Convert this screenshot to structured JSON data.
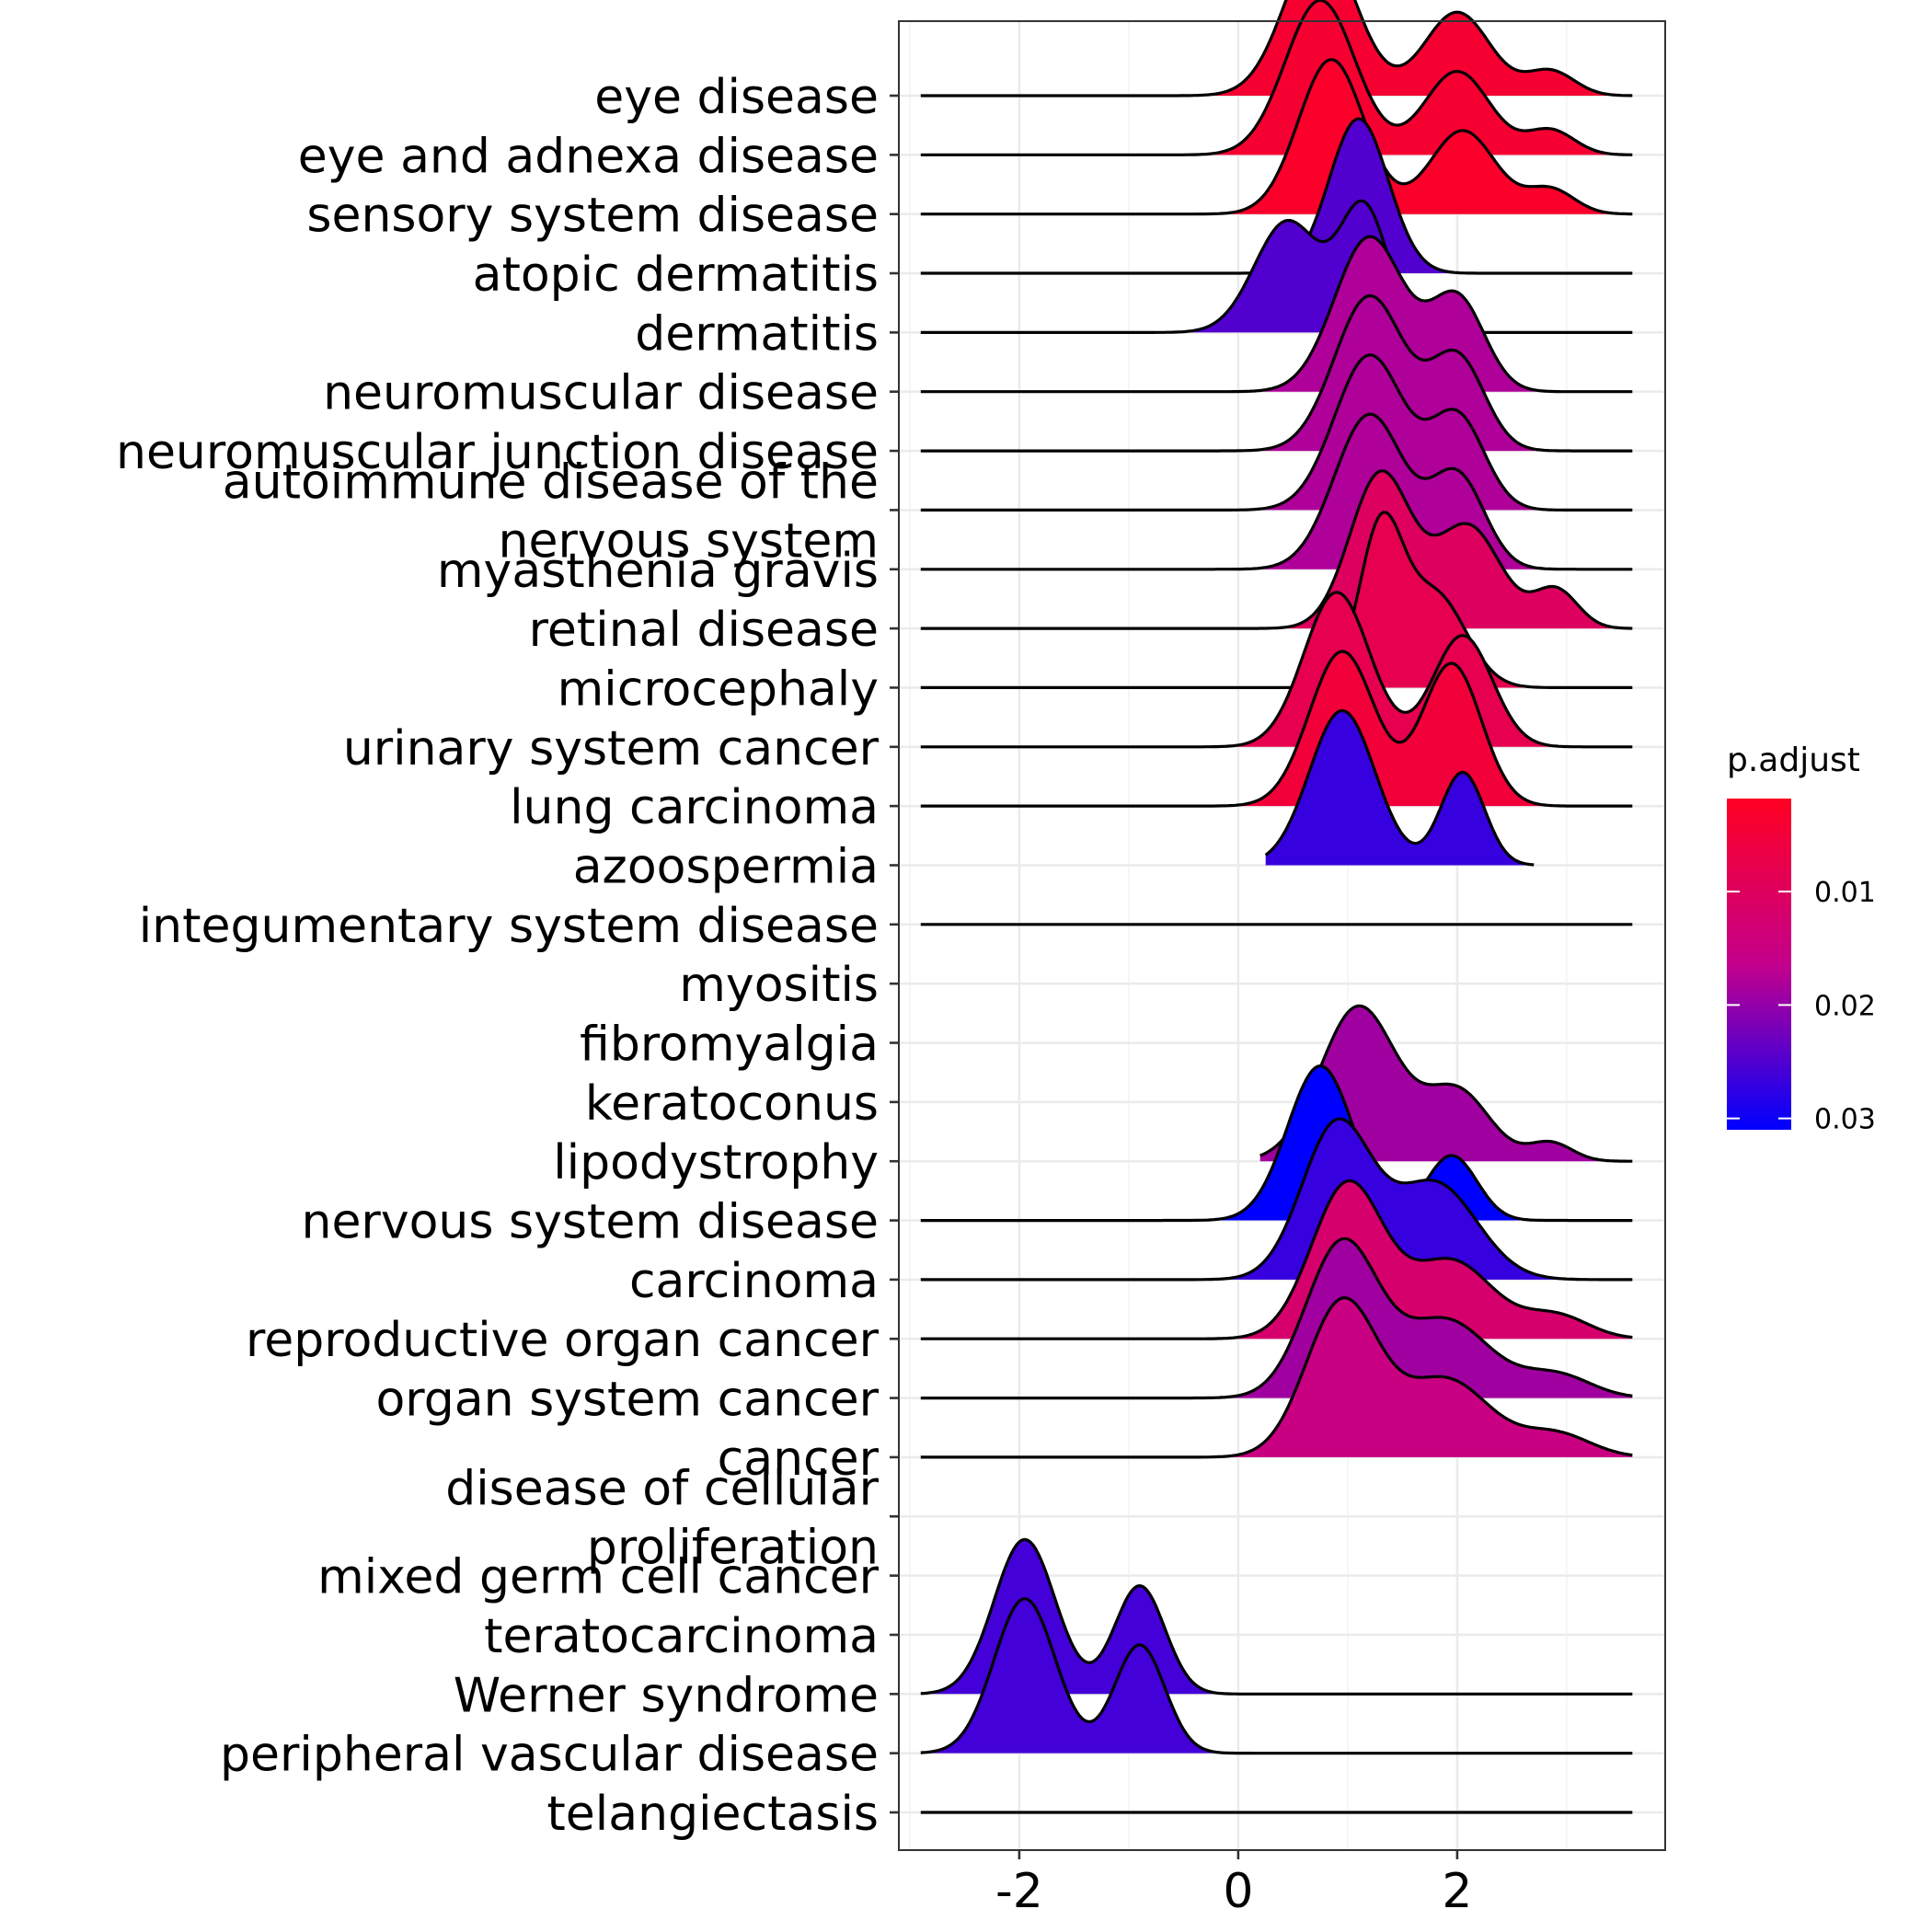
{
  "chart_data": {
    "type": "ridgeline",
    "xlabel": "",
    "ylabel": "",
    "xlim": [
      -3.1,
      3.9
    ],
    "x_ticks": [
      -2,
      0,
      2
    ],
    "x_tick_labels": [
      "-2",
      "0",
      "2"
    ],
    "grid": true,
    "categories": [
      "eye disease",
      "eye and adnexa disease",
      "sensory system disease",
      "atopic dermatitis",
      "dermatitis",
      "neuromuscular disease",
      "neuromuscular junction disease",
      "autoimmune disease of the\nnervous system",
      "myasthenia gravis",
      "retinal disease",
      "microcephaly",
      "urinary system cancer",
      "lung carcinoma",
      "azoospermia",
      "integumentary system disease",
      "myositis",
      "fibromyalgia",
      "keratoconus",
      "lipodystrophy",
      "nervous system disease",
      "carcinoma",
      "reproductive organ cancer",
      "organ system cancer",
      "cancer",
      "disease of cellular\nproliferation",
      "mixed germ cell cancer",
      "teratocarcinoma",
      "Werner syndrome",
      "peripheral vascular disease",
      "telangiectasis"
    ],
    "series": [
      {
        "category": "eye disease",
        "p_adjust": 0.004,
        "peaks": [
          [
            0.75,
            0.32,
            1.0
          ],
          [
            2.0,
            0.3,
            0.54
          ],
          [
            2.85,
            0.22,
            0.16
          ]
        ],
        "x_range": [
          -2.9,
          3.6
        ],
        "curve": true
      },
      {
        "category": "eye and adnexa disease",
        "p_adjust": 0.004,
        "peaks": [
          [
            0.75,
            0.32,
            1.0
          ],
          [
            2.0,
            0.3,
            0.54
          ],
          [
            2.85,
            0.22,
            0.16
          ]
        ],
        "x_range": [
          -2.9,
          3.6
        ],
        "curve": true
      },
      {
        "category": "sensory system disease",
        "p_adjust": 0.003,
        "peaks": [
          [
            0.85,
            0.3,
            1.0
          ],
          [
            2.05,
            0.3,
            0.54
          ],
          [
            2.85,
            0.22,
            0.16
          ]
        ],
        "x_range": [
          -2.9,
          3.6
        ],
        "curve": true
      },
      {
        "category": "atopic dermatitis",
        "p_adjust": 0.025,
        "peaks": [
          [
            1.1,
            0.27,
            1.0
          ]
        ],
        "x_range": [
          -2.9,
          3.6
        ],
        "curve": true
      },
      {
        "category": "dermatitis",
        "p_adjust": 0.025,
        "peaks": [
          [
            0.45,
            0.3,
            0.72
          ],
          [
            1.15,
            0.22,
            0.8
          ]
        ],
        "x_range": [
          -2.9,
          3.6
        ],
        "curve": true
      },
      {
        "category": "neuromuscular disease",
        "p_adjust": 0.018,
        "peaks": [
          [
            1.2,
            0.32,
            1.0
          ],
          [
            2.0,
            0.25,
            0.6
          ]
        ],
        "x_range": [
          -2.9,
          3.6
        ],
        "curve": true
      },
      {
        "category": "neuromuscular junction disease",
        "p_adjust": 0.018,
        "peaks": [
          [
            1.2,
            0.32,
            1.0
          ],
          [
            2.0,
            0.25,
            0.6
          ]
        ],
        "x_range": [
          -2.9,
          3.6
        ],
        "curve": true
      },
      {
        "category": "autoimmune disease of the\nnervous system",
        "p_adjust": 0.018,
        "peaks": [
          [
            1.2,
            0.32,
            1.0
          ],
          [
            2.0,
            0.25,
            0.6
          ]
        ],
        "x_range": [
          -2.9,
          3.6
        ],
        "curve": true
      },
      {
        "category": "myasthenia gravis",
        "p_adjust": 0.018,
        "peaks": [
          [
            1.2,
            0.32,
            1.0
          ],
          [
            2.0,
            0.25,
            0.6
          ]
        ],
        "x_range": [
          -2.9,
          3.6
        ],
        "curve": true
      },
      {
        "category": "retinal disease",
        "p_adjust": 0.01,
        "peaks": [
          [
            1.3,
            0.28,
            1.0
          ],
          [
            2.1,
            0.3,
            0.66
          ],
          [
            2.9,
            0.2,
            0.25
          ]
        ],
        "x_range": [
          -2.9,
          3.6
        ],
        "curve": true
      },
      {
        "category": "microcephaly",
        "p_adjust": 0.008,
        "peaks": [
          [
            1.3,
            0.2,
            1.0
          ],
          [
            1.8,
            0.28,
            0.6
          ]
        ],
        "x_range": [
          -2.9,
          3.6
        ],
        "curve": true
      },
      {
        "category": "urinary system cancer",
        "p_adjust": 0.008,
        "peaks": [
          [
            0.9,
            0.3,
            1.0
          ],
          [
            2.05,
            0.27,
            0.72
          ]
        ],
        "x_range": [
          -2.9,
          3.6
        ],
        "curve": true
      },
      {
        "category": "lung carcinoma",
        "p_adjust": 0.005,
        "peaks": [
          [
            0.95,
            0.3,
            1.0
          ],
          [
            1.95,
            0.27,
            0.92
          ]
        ],
        "x_range": [
          -2.9,
          3.6
        ],
        "curve": true
      },
      {
        "category": "azoospermia",
        "p_adjust": 0.027,
        "peaks": [
          [
            0.95,
            0.3,
            1.0
          ],
          [
            2.05,
            0.2,
            0.6
          ]
        ],
        "x_range": [
          0.25,
          2.7
        ],
        "curve": false
      },
      {
        "category": "integumentary system disease",
        "p_adjust": 0.027,
        "peaks": [],
        "x_range": [
          -2.9,
          3.6
        ],
        "curve": true
      },
      {
        "category": "myositis",
        "p_adjust": null,
        "peaks": [],
        "x_range": null,
        "curve": false
      },
      {
        "category": "fibromyalgia",
        "p_adjust": null,
        "peaks": [],
        "x_range": null,
        "curve": false
      },
      {
        "category": "keratoconus",
        "p_adjust": null,
        "peaks": [],
        "x_range": null,
        "curve": false
      },
      {
        "category": "lipodystrophy",
        "p_adjust": 0.019,
        "peaks": [
          [
            1.1,
            0.35,
            1.0
          ],
          [
            2.0,
            0.3,
            0.45
          ],
          [
            2.85,
            0.2,
            0.12
          ]
        ],
        "x_range": [
          0.2,
          3.6
        ],
        "curve": false
      },
      {
        "category": "nervous system disease",
        "p_adjust": 0.031,
        "peaks": [
          [
            0.75,
            0.3,
            1.0
          ],
          [
            1.95,
            0.23,
            0.42
          ]
        ],
        "x_range": [
          -2.9,
          3.6
        ],
        "curve": true
      },
      {
        "category": "carcinoma",
        "p_adjust": 0.027,
        "peaks": [
          [
            0.9,
            0.32,
            1.0
          ],
          [
            1.8,
            0.38,
            0.62
          ]
        ],
        "x_range": [
          -2.9,
          3.6
        ],
        "curve": true
      },
      {
        "category": "reproductive organ cancer",
        "p_adjust": 0.012,
        "peaks": [
          [
            1.0,
            0.33,
            1.0
          ],
          [
            1.95,
            0.38,
            0.5
          ],
          [
            2.9,
            0.3,
            0.15
          ]
        ],
        "x_range": [
          -2.9,
          3.6
        ],
        "curve": true
      },
      {
        "category": "organ system cancer",
        "p_adjust": 0.019,
        "peaks": [
          [
            0.95,
            0.33,
            1.0
          ],
          [
            1.9,
            0.4,
            0.5
          ],
          [
            2.9,
            0.32,
            0.15
          ]
        ],
        "x_range": [
          -2.9,
          3.6
        ],
        "curve": true
      },
      {
        "category": "cancer",
        "p_adjust": 0.015,
        "peaks": [
          [
            0.95,
            0.33,
            1.0
          ],
          [
            1.9,
            0.4,
            0.5
          ],
          [
            2.9,
            0.32,
            0.15
          ]
        ],
        "x_range": [
          -2.9,
          3.6
        ],
        "curve": true
      },
      {
        "category": "disease of cellular\nproliferation",
        "p_adjust": null,
        "peaks": [],
        "x_range": null,
        "curve": false
      },
      {
        "category": "mixed germ cell cancer",
        "p_adjust": null,
        "peaks": [],
        "x_range": null,
        "curve": false
      },
      {
        "category": "teratocarcinoma",
        "p_adjust": null,
        "peaks": [],
        "x_range": null,
        "curve": false
      },
      {
        "category": "Werner syndrome",
        "p_adjust": 0.026,
        "peaks": [
          [
            -1.95,
            0.28,
            1.0
          ],
          [
            -0.9,
            0.23,
            0.7
          ]
        ],
        "x_range": [
          -2.9,
          3.6
        ],
        "curve": true
      },
      {
        "category": "peripheral vascular disease",
        "p_adjust": 0.026,
        "peaks": [
          [
            -1.95,
            0.28,
            1.0
          ],
          [
            -0.9,
            0.23,
            0.7
          ]
        ],
        "x_range": [
          -2.9,
          3.6
        ],
        "curve": true
      },
      {
        "category": "telangiectasis",
        "p_adjust": null,
        "peaks": [],
        "x_range": [
          -2.9,
          3.6
        ],
        "curve": true
      }
    ],
    "legend": {
      "title": "p.adjust",
      "placement": "right",
      "ticks": [
        0.01,
        0.02,
        0.03
      ],
      "tick_labels": [
        "0.01",
        "0.02",
        "0.03"
      ],
      "range": [
        0.0018,
        0.031
      ],
      "color_low": "#ff0022",
      "color_high": "#0000ff"
    }
  }
}
